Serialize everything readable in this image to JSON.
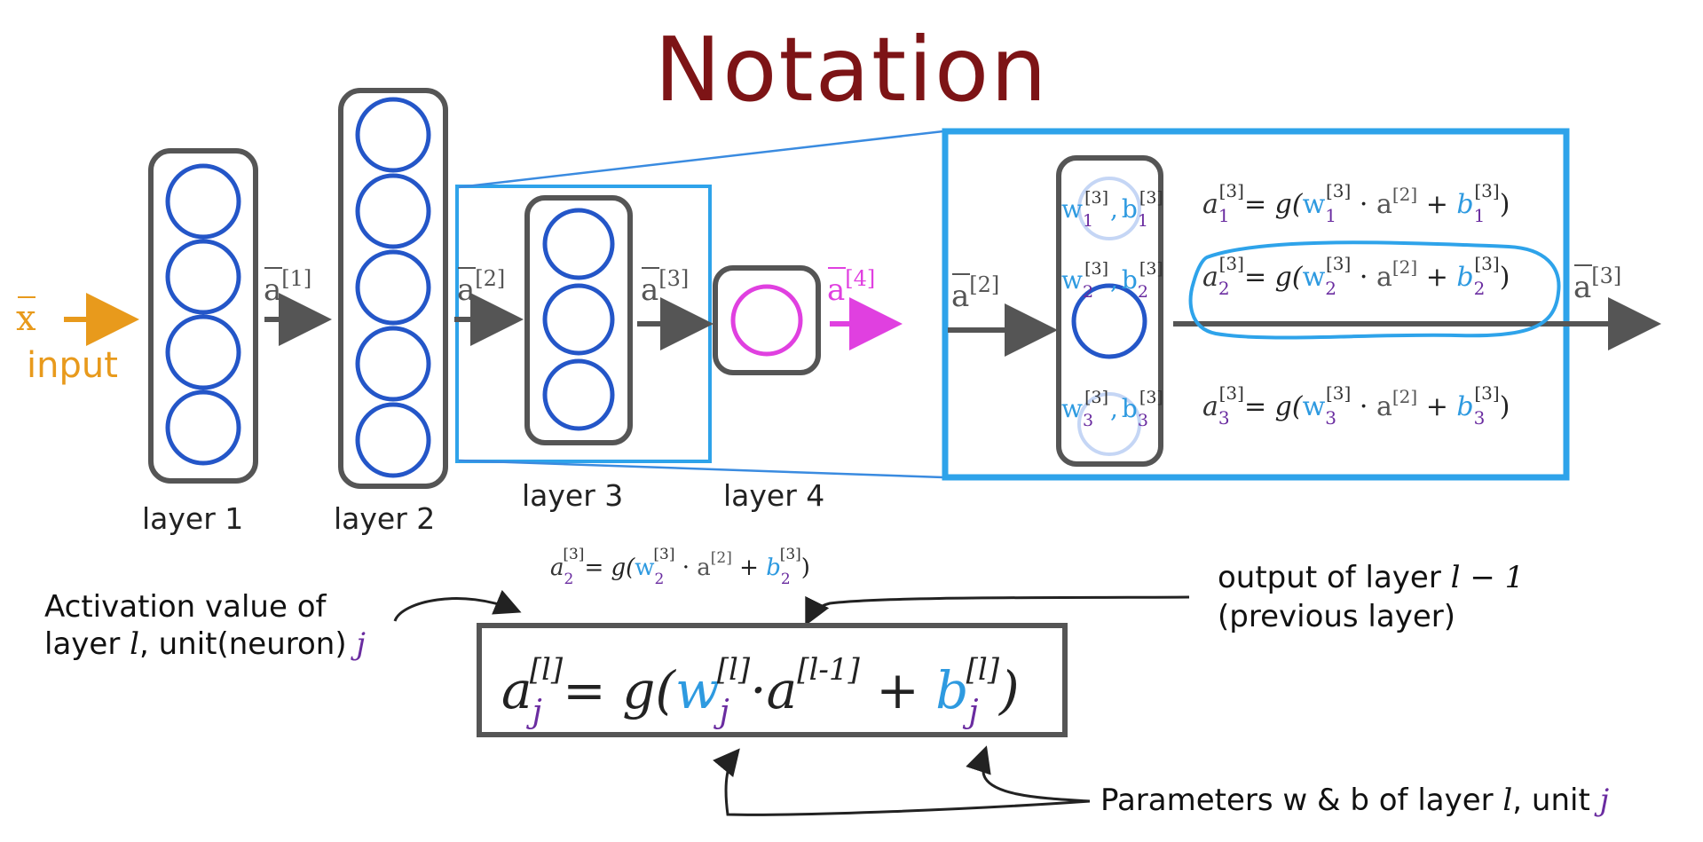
{
  "title": "Notation",
  "input": {
    "symbol": "x",
    "label": "input"
  },
  "layers": [
    {
      "label": "layer 1",
      "units": 4
    },
    {
      "label": "layer 2",
      "units": 5
    },
    {
      "label": "layer 3",
      "units": 3
    },
    {
      "label": "layer 4",
      "units": 1
    }
  ],
  "arrows": {
    "a1": {
      "base": "a",
      "sup": "[1]"
    },
    "a2": {
      "base": "a",
      "sup": "[2]"
    },
    "a3": {
      "base": "a",
      "sup": "[3]"
    },
    "a4": {
      "base": "a",
      "sup": "[4]"
    }
  },
  "zoom": {
    "input_base": "a",
    "input_sup": "[2]",
    "output_base": "a",
    "output_sup": "[3]",
    "params": [
      {
        "w": "w",
        "sub": "1",
        "sup": "[3]",
        "b": "b"
      },
      {
        "w": "w",
        "sub": "2",
        "sup": "[3]",
        "b": "b"
      },
      {
        "w": "w",
        "sub": "3",
        "sup": "[3]",
        "b": "b"
      }
    ],
    "equations": [
      {
        "a": "a",
        "sub": "1",
        "sup": "[3]",
        "g": "= g(",
        "w": "w",
        "dot": " · ",
        "ap": "a",
        "apsup": "[2]",
        "plus": " + ",
        "b": "b",
        "close": ")"
      },
      {
        "a": "a",
        "sub": "2",
        "sup": "[3]",
        "g": "= g(",
        "w": "w",
        "dot": " · ",
        "ap": "a",
        "apsup": "[2]",
        "plus": " + ",
        "b": "b",
        "close": ")"
      },
      {
        "a": "a",
        "sub": "3",
        "sup": "[3]",
        "g": "= g(",
        "w": "w",
        "dot": " · ",
        "ap": "a",
        "apsup": "[2]",
        "plus": " + ",
        "b": "b",
        "close": ")"
      }
    ]
  },
  "general_example": {
    "a": "a",
    "sub": "2",
    "sup": "[3]",
    "g": "= g(",
    "w": "w",
    "dot": " · ",
    "ap": "a",
    "apsup": "[2]",
    "plus": " + ",
    "b": "b",
    "close": ")"
  },
  "general_formula": {
    "a": "a",
    "sub": "j",
    "sup": "[l]",
    "g": "= g(",
    "w": "w",
    "dot": "·",
    "ap": "a",
    "apsup": "[l-1]",
    "plus": " + ",
    "b": "b",
    "close": ")"
  },
  "notes": {
    "activation_line1": "Activation value of",
    "activation_line2_prefix": "layer ",
    "activation_line2_l": "l",
    "activation_line2_mid": ", unit(neuron) ",
    "activation_line2_j": "j",
    "output_line1_prefix": "output of layer ",
    "output_line1_expr": "l − 1",
    "output_line2": "(previous layer)",
    "params_prefix": "Parameters w & b of layer ",
    "params_l": "l",
    "params_mid": ", unit ",
    "params_j": "j"
  },
  "colors": {
    "title": "#7d1416",
    "input": "#e89a1c",
    "neuron": "#2456c8",
    "output_neuron": "#e040e0",
    "zoom_box": "#2ea3ea",
    "w": "#2e9ae0",
    "sub": "#6a2ca0",
    "arrow": "#555555"
  }
}
